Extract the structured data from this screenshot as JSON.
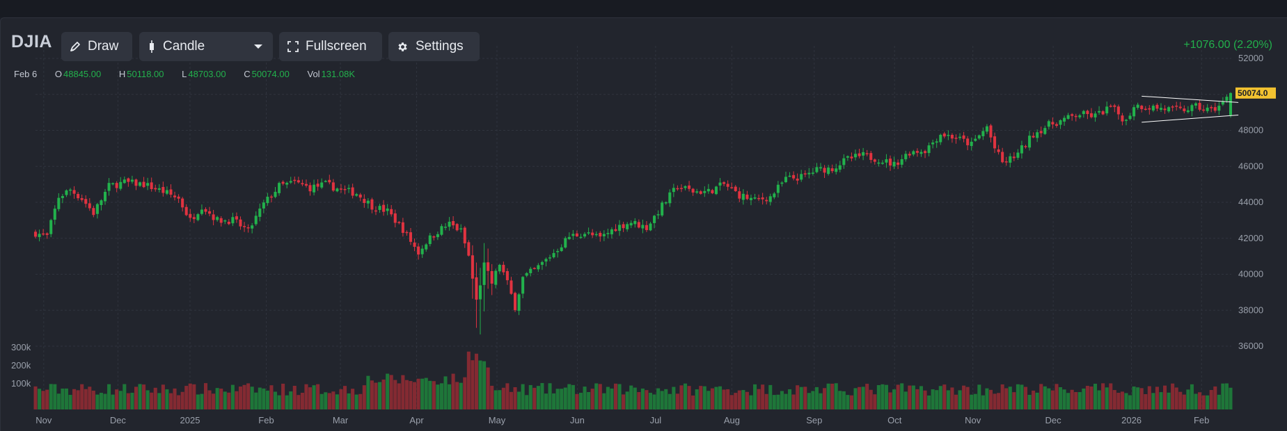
{
  "toolbar": {
    "symbol": "DJIA",
    "draw_label": "Draw",
    "chart_type_label": "Candle",
    "fullscreen_label": "Fullscreen",
    "settings_label": "Settings",
    "change_text": "+1076.00 (2.20%)"
  },
  "ohlc": {
    "date": "Feb 6",
    "open_key": "O",
    "open": "48845.00",
    "high_key": "H",
    "high": "50118.00",
    "low_key": "L",
    "low": "48703.00",
    "close_key": "C",
    "close": "50074.00",
    "vol_key": "Vol",
    "vol": "131.08K"
  },
  "last_price_label": "50074.0",
  "colors": {
    "up": "#22b14c",
    "down": "#e03340",
    "accent_price": "#f2c230",
    "grid": "#30343e"
  },
  "chart_data": {
    "type": "candlestick",
    "y_ticks": [
      "52000",
      "50000",
      "48000",
      "46000",
      "44000",
      "42000",
      "40000",
      "38000",
      "36000"
    ],
    "ylim": [
      36000,
      52000
    ],
    "volume_ticks": [
      "300k",
      "200k",
      "100k"
    ],
    "x_ticks": [
      "Nov",
      "Dec",
      "2025",
      "Feb",
      "Mar",
      "Apr",
      "May",
      "Jun",
      "Jul",
      "Aug",
      "Sep",
      "Oct",
      "Nov",
      "Dec",
      "2026",
      "Feb"
    ],
    "price_path": [
      [
        0,
        42300
      ],
      [
        3,
        42100
      ],
      [
        6,
        44300
      ],
      [
        9,
        44700
      ],
      [
        12,
        44200
      ],
      [
        15,
        43400
      ],
      [
        19,
        44900
      ],
      [
        23,
        45100
      ],
      [
        28,
        45000
      ],
      [
        33,
        44600
      ],
      [
        37,
        44200
      ],
      [
        40,
        43000
      ],
      [
        43,
        43800
      ],
      [
        47,
        43000
      ],
      [
        51,
        43000
      ],
      [
        55,
        42400
      ],
      [
        59,
        43900
      ],
      [
        63,
        44900
      ],
      [
        67,
        45100
      ],
      [
        71,
        44800
      ],
      [
        75,
        45000
      ],
      [
        79,
        44700
      ],
      [
        83,
        44500
      ],
      [
        87,
        43800
      ],
      [
        91,
        43500
      ],
      [
        95,
        42500
      ],
      [
        99,
        41200
      ],
      [
        101,
        41800
      ],
      [
        104,
        42400
      ],
      [
        107,
        42800
      ],
      [
        110,
        42400
      ],
      [
        112,
        41000
      ],
      [
        114,
        38500
      ],
      [
        116,
        40500
      ],
      [
        118,
        39500
      ],
      [
        120,
        40600
      ],
      [
        122,
        39500
      ],
      [
        124,
        38200
      ],
      [
        126,
        39800
      ],
      [
        130,
        40400
      ],
      [
        134,
        41200
      ],
      [
        138,
        42100
      ],
      [
        142,
        42300
      ],
      [
        146,
        42000
      ],
      [
        150,
        42600
      ],
      [
        154,
        42900
      ],
      [
        158,
        42600
      ],
      [
        162,
        43800
      ],
      [
        166,
        44900
      ],
      [
        170,
        44600
      ],
      [
        174,
        44600
      ],
      [
        178,
        45000
      ],
      [
        182,
        44400
      ],
      [
        186,
        44100
      ],
      [
        190,
        44300
      ],
      [
        194,
        45300
      ],
      [
        198,
        45400
      ],
      [
        202,
        45800
      ],
      [
        206,
        45900
      ],
      [
        210,
        46400
      ],
      [
        214,
        46600
      ],
      [
        218,
        46400
      ],
      [
        222,
        46100
      ],
      [
        226,
        46800
      ],
      [
        230,
        46900
      ],
      [
        234,
        47800
      ],
      [
        238,
        47600
      ],
      [
        242,
        47200
      ],
      [
        246,
        48200
      ],
      [
        248,
        47000
      ],
      [
        250,
        46200
      ],
      [
        252,
        46400
      ],
      [
        254,
        46700
      ],
      [
        258,
        47800
      ],
      [
        262,
        48300
      ],
      [
        266,
        48600
      ],
      [
        270,
        48900
      ],
      [
        274,
        48800
      ],
      [
        278,
        49300
      ],
      [
        282,
        48500
      ],
      [
        284,
        49400
      ],
      [
        288,
        49300
      ],
      [
        292,
        49200
      ],
      [
        296,
        49100
      ],
      [
        300,
        49300
      ],
      [
        304,
        49100
      ],
      [
        307,
        49500
      ],
      [
        309,
        50074
      ]
    ]
  }
}
